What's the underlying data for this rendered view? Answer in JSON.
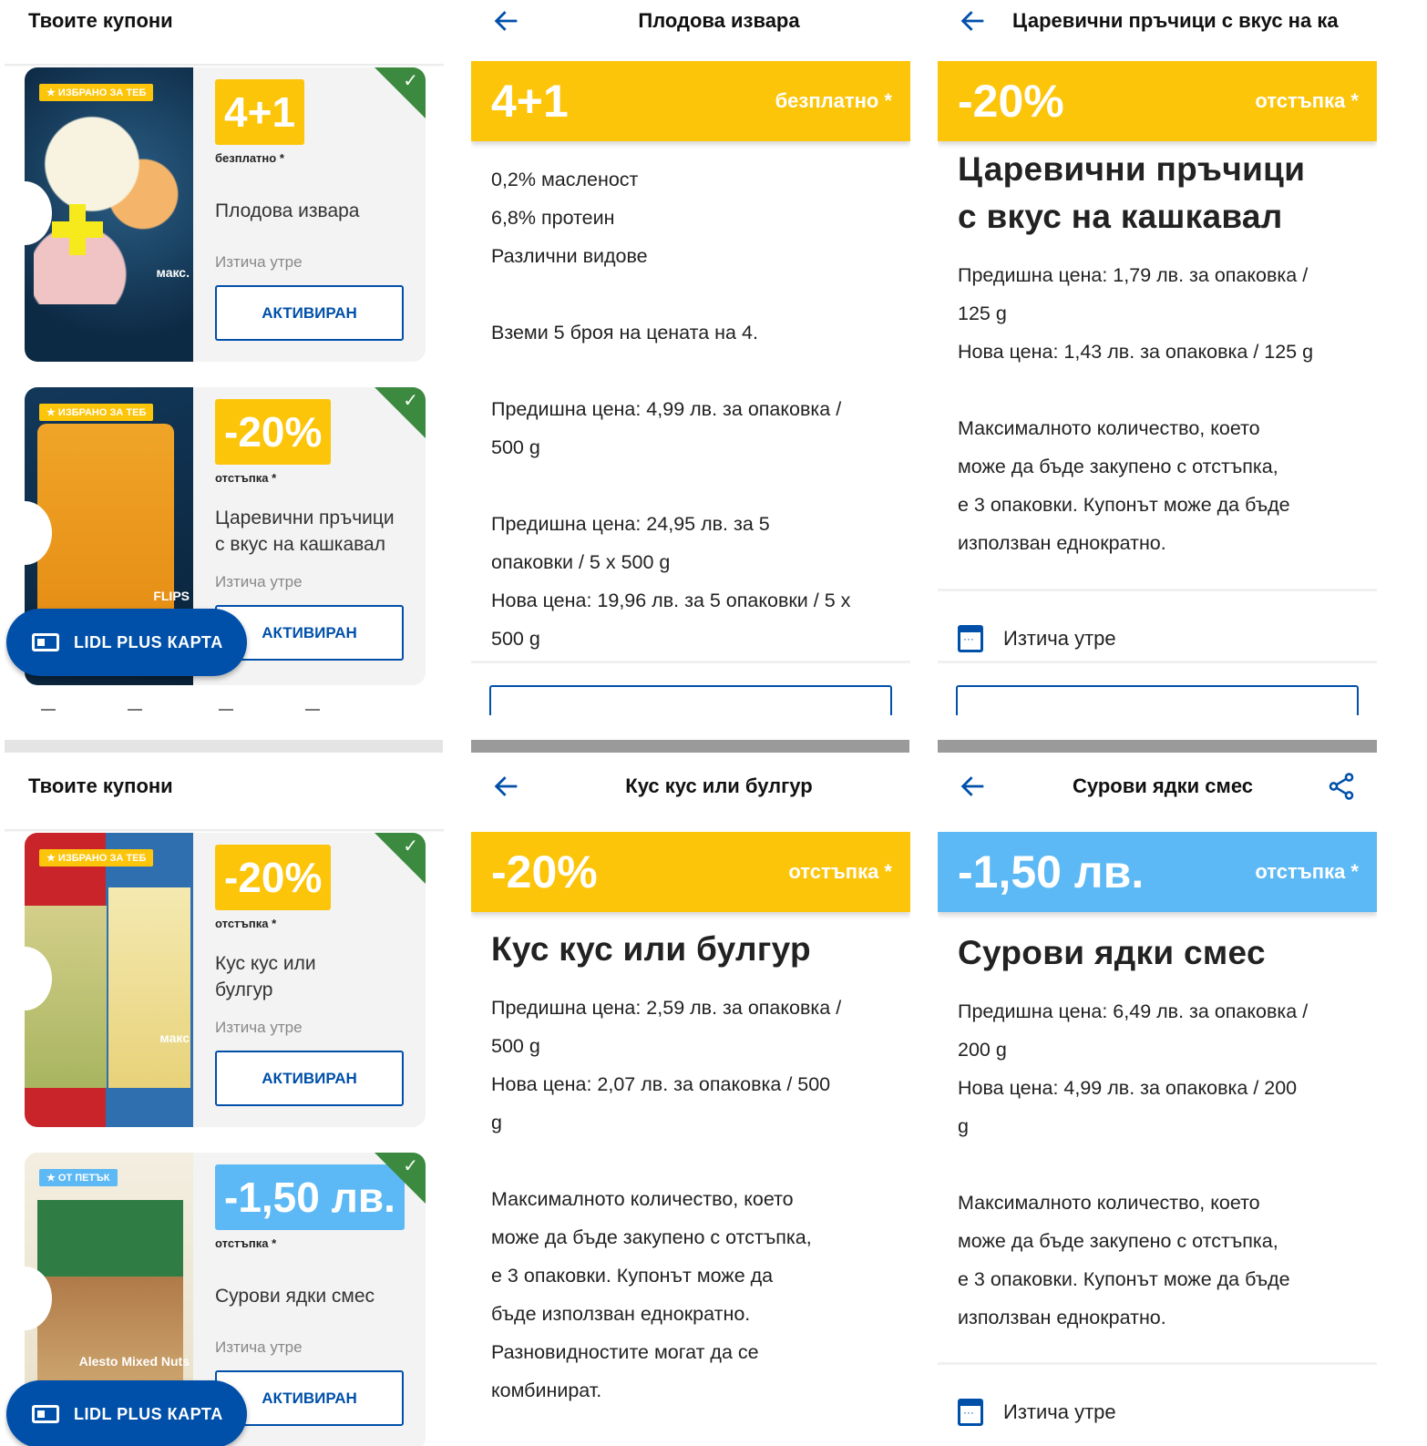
{
  "colors": {
    "yellow": "#fcc50a",
    "light_blue": "#5cb9f5",
    "lidl_blue": "#0050aa",
    "green": "#3b8a3f"
  },
  "coupon_lists": [
    {
      "header": "Твоите купони",
      "lidl_button": "LIDL PLUS КАРТА",
      "cards": [
        {
          "badge": "ИЗБРАНО ЗА ТЕБ",
          "badge_icon": "star-icon",
          "deal": "4+1",
          "deal_color": "#fcc50a",
          "deal_sub": "безплатно *",
          "name_lines": [
            "Плодова извара"
          ],
          "expiry": "Изтича утре",
          "button": "АКТИВИРАН",
          "image_note": "макс.",
          "activated": true
        },
        {
          "badge": "ИЗБРАНО ЗА ТЕБ",
          "badge_icon": "star-icon",
          "deal": "-20%",
          "deal_color": "#fcc50a",
          "deal_sub": "отстъпка *",
          "name_lines": [
            "Царевични пръчици",
            "с вкус на кашкавал"
          ],
          "expiry": "Изтича утре",
          "button": "АКТИВИРАН",
          "image_note": "FLIPS",
          "activated": true
        }
      ]
    },
    {
      "header": "Твоите купони",
      "lidl_button": "LIDL PLUS КАРТА",
      "cards": [
        {
          "badge": "ИЗБРАНО ЗА ТЕБ",
          "badge_icon": "star-icon",
          "deal": "-20%",
          "deal_color": "#fcc50a",
          "deal_sub": "отстъпка *",
          "name_lines": [
            "Кус кус или",
            "булгур"
          ],
          "expiry": "Изтича утре",
          "button": "АКТИВИРАН",
          "image_note": "макс",
          "activated": true
        },
        {
          "badge": "ОТ ПЕТЪК",
          "badge_icon": "star-icon",
          "deal": "-1,50 лв.",
          "deal_color": "#5cb9f5",
          "deal_sub": "отстъпка *",
          "name_lines": [
            "Сурови ядки смес"
          ],
          "expiry": "Изтича утре",
          "button": "АКТИВИРАН",
          "image_note": "Alesto Mixed Nuts",
          "activated": true
        }
      ]
    }
  ],
  "details": [
    {
      "header": "Плодова извара",
      "deal": "4+1",
      "deal_label": "безплатно *",
      "deal_color": "#fcc50a",
      "title_lines": [],
      "lines": [
        "0,2% масленост",
        "6,8% протеин",
        "Различни видове",
        "",
        "Вземи 5 броя на цената на 4.",
        "",
        "Предишна цена: 4,99 лв. за опаковка /",
        "500 g",
        "",
        "Предишна цена: 24,95 лв. за 5",
        "опаковки / 5 x 500 g",
        "Нова цена: 19,96 лв. за 5 опаковки / 5 x",
        "500 g"
      ],
      "expiry": ""
    },
    {
      "header": "Царевични пръчици с вкус на ка",
      "deal": "-20%",
      "deal_label": "отстъпка *",
      "deal_color": "#fcc50a",
      "title_lines": [
        "Царевични пръчици",
        "с вкус на кашкавал"
      ],
      "lines": [
        "Предишна цена: 1,79 лв. за опаковка /",
        "125 g",
        "Нова цена: 1,43 лв. за опаковка / 125 g",
        "",
        "Максималното количество, което",
        "може да бъде закупено с отстъпка,",
        "е 3 опаковки. Купонът може да бъде",
        "използван еднократно."
      ],
      "expiry": "Изтича утре"
    },
    {
      "header": "Кус кус или булгур",
      "deal": "-20%",
      "deal_label": "отстъпка *",
      "deal_color": "#fcc50a",
      "title_lines": [
        "Кус кус или булгур"
      ],
      "lines": [
        "Предишна цена: 2,59 лв. за опаковка /",
        "500 g",
        "Нова цена: 2,07 лв. за опаковка / 500",
        "g",
        "",
        "Максималното количество, което",
        "може да бъде закупено с отстъпка,",
        "е 3 опаковки. Купонът може да",
        "бъде използван еднократно.",
        "Разновидностите могат да се",
        "комбинират."
      ],
      "expiry": ""
    },
    {
      "header": "Сурови ядки смес",
      "deal": "-1,50 лв.",
      "deal_label": "отстъпка *",
      "deal_color": "#5cb9f5",
      "title_lines": [
        "Сурови ядки смес"
      ],
      "lines": [
        "Предишна цена: 6,49 лв. за опаковка /",
        "200 g",
        "Нова цена: 4,99 лв. за опаковка / 200",
        "g",
        "",
        "Максималното количество, което",
        "може да бъде закупено с отстъпка,",
        "е 3 опаковки. Купонът може да бъде",
        "използван еднократно."
      ],
      "expiry": "Изтича утре",
      "share": true
    }
  ]
}
